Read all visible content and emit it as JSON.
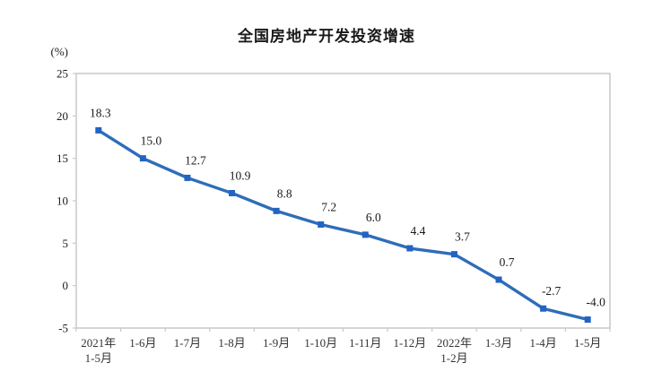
{
  "chart": {
    "title": "全国房地产开发投资增速",
    "unit_label": "(%)"
  },
  "chart_data": {
    "type": "line",
    "title": "全国房地产开发投资增速",
    "ylabel": "(%)",
    "xlabel": "",
    "categories": [
      "2021年\n1-5月",
      "1-6月",
      "1-7月",
      "1-8月",
      "1-9月",
      "1-10月",
      "1-11月",
      "1-12月",
      "2022年\n1-2月",
      "1-3月",
      "1-4月",
      "1-5月"
    ],
    "values": [
      18.3,
      15.0,
      12.7,
      10.9,
      8.8,
      7.2,
      6.0,
      4.4,
      3.7,
      0.7,
      -2.7,
      -4.0
    ],
    "value_labels": [
      "18.3",
      "15.0",
      "12.7",
      "10.9",
      "8.8",
      "7.2",
      "6.0",
      "4.4",
      "3.7",
      "0.7",
      "-2.7",
      "-4.0"
    ],
    "ylim": [
      -5,
      25
    ],
    "ytick_step": 5,
    "grid": false,
    "legend": "none",
    "marker_shape": "square",
    "colors": {
      "line": "#2E6DB9",
      "marker": "#2263C3",
      "axis": "#C9C9C9",
      "label": "#1A1A1A"
    }
  }
}
